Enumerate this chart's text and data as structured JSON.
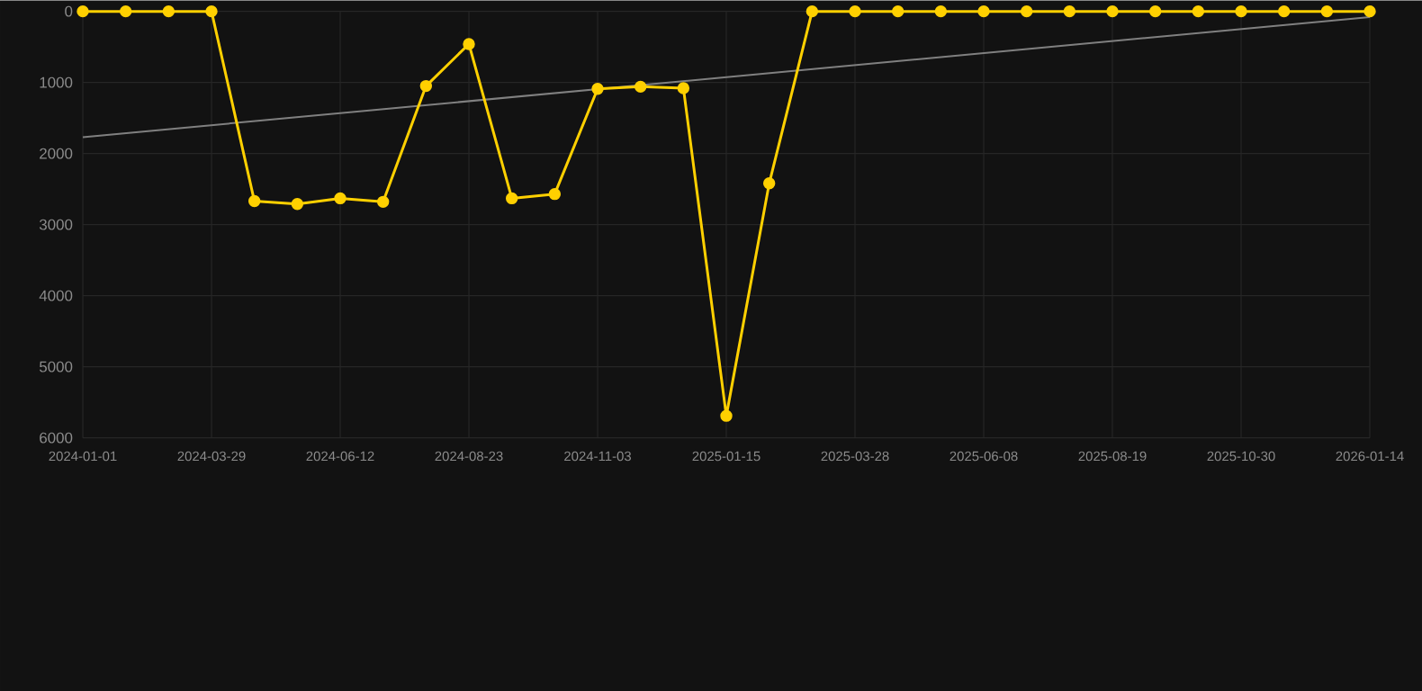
{
  "chart_data": {
    "type": "line",
    "categories": [
      "2024-01-01",
      null,
      null,
      "2024-03-29",
      null,
      null,
      "2024-06-12",
      null,
      null,
      "2024-08-23",
      null,
      null,
      "2024-11-03",
      null,
      null,
      "2025-01-15",
      null,
      null,
      "2025-03-28",
      null,
      null,
      "2025-06-08",
      null,
      null,
      "2025-08-19",
      null,
      null,
      "2025-10-30",
      null,
      null,
      "2026-01-14"
    ],
    "series": [
      {
        "color": "#ffd000",
        "values": [
          0,
          0,
          0,
          0,
          2670,
          2710,
          2630,
          2680,
          1050,
          460,
          2630,
          2570,
          1090,
          1060,
          1080,
          5690,
          2420,
          0,
          0,
          0,
          0,
          0,
          0,
          0,
          0,
          0,
          0,
          0,
          0,
          0,
          0
        ]
      },
      {
        "type": "line",
        "color": "#808080",
        "marker": "none",
        "values": [
          1770,
          null,
          null,
          null,
          null,
          null,
          null,
          null,
          null,
          null,
          null,
          null,
          null,
          null,
          null,
          null,
          null,
          null,
          null,
          null,
          null,
          null,
          null,
          null,
          null,
          null,
          null,
          null,
          null,
          null,
          80
        ]
      }
    ],
    "ylim": [
      6000,
      0
    ],
    "yticks": [
      0,
      1000,
      2000,
      3000,
      4000,
      5000,
      6000
    ],
    "grid": true,
    "marker": "circle",
    "line_style": "solid"
  }
}
